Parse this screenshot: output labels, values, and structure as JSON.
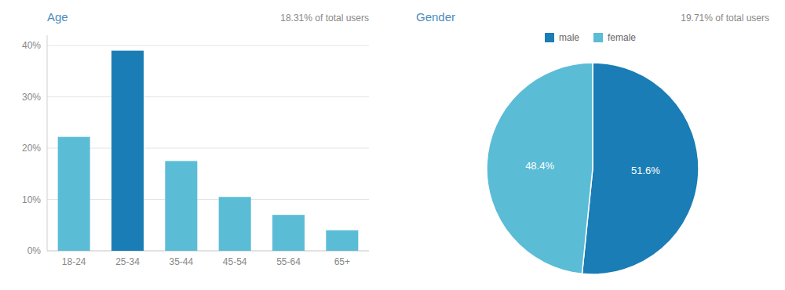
{
  "chart_data": [
    {
      "type": "bar",
      "title": "Age",
      "subtitle": "18.31% of total users",
      "categories": [
        "18-24",
        "25-34",
        "35-44",
        "45-54",
        "55-64",
        "65+"
      ],
      "values": [
        22.2,
        39.0,
        17.5,
        10.5,
        7.0,
        4.0
      ],
      "colors": [
        "#5bbcd6",
        "#1a7db5",
        "#5bbcd6",
        "#5bbcd6",
        "#5bbcd6",
        "#5bbcd6"
      ],
      "ylim": [
        0,
        42
      ],
      "yticks": [
        {
          "value": 0,
          "label": "0%"
        },
        {
          "value": 10,
          "label": "10%"
        },
        {
          "value": 20,
          "label": "20%"
        },
        {
          "value": 30,
          "label": "30%"
        },
        {
          "value": 40,
          "label": "40%"
        }
      ],
      "grid": true
    },
    {
      "type": "pie",
      "title": "Gender",
      "subtitle": "19.71% of total users",
      "categories": [
        "male",
        "female"
      ],
      "values": [
        51.6,
        48.4
      ],
      "value_labels": [
        "51.6%",
        "48.4%"
      ],
      "colors": [
        "#1a7db5",
        "#5bbcd6"
      ],
      "data_labels": true,
      "legend": "top"
    }
  ]
}
